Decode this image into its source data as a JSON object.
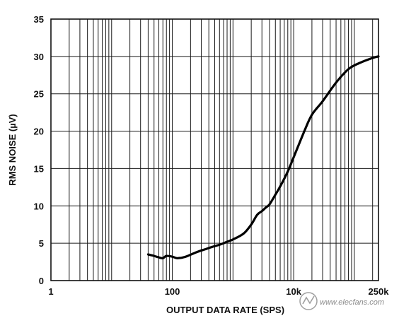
{
  "chart_data": {
    "type": "line",
    "title": "",
    "xlabel": "OUTPUT DATA RATE (SPS)",
    "ylabel": "RMS NOISE (µV)",
    "x_scale": "log",
    "xlim": [
      1,
      250000
    ],
    "ylim": [
      0,
      35
    ],
    "x_ticks": [
      {
        "value": 1,
        "label": "1"
      },
      {
        "value": 100,
        "label": "100"
      },
      {
        "value": 10000,
        "label": "10k"
      },
      {
        "value": 250000,
        "label": "250k"
      }
    ],
    "y_ticks": [
      0,
      5,
      10,
      15,
      20,
      25,
      30,
      35
    ],
    "grid": true,
    "series": [
      {
        "x": [
          40,
          50,
          60,
          70,
          80,
          100,
          120,
          150,
          180,
          250,
          350,
          450,
          600,
          700,
          800,
          1000,
          1500,
          2000,
          2500,
          3000,
          3500,
          4000,
          5000,
          6000,
          8000,
          10000,
          15000,
          20000,
          30000,
          50000,
          80000,
          120000,
          200000,
          250000
        ],
        "y": [
          3.5,
          3.3,
          3.1,
          3.0,
          3.3,
          3.2,
          3.0,
          3.1,
          3.3,
          3.8,
          4.2,
          4.5,
          4.8,
          5.0,
          5.2,
          5.5,
          6.3,
          7.5,
          8.8,
          9.3,
          9.8,
          10.2,
          11.5,
          12.6,
          14.6,
          16.5,
          20.0,
          22.2,
          24.0,
          26.5,
          28.3,
          29.1,
          29.8,
          30.0
        ]
      }
    ]
  },
  "watermark": {
    "text": "www.elecfans.com"
  }
}
